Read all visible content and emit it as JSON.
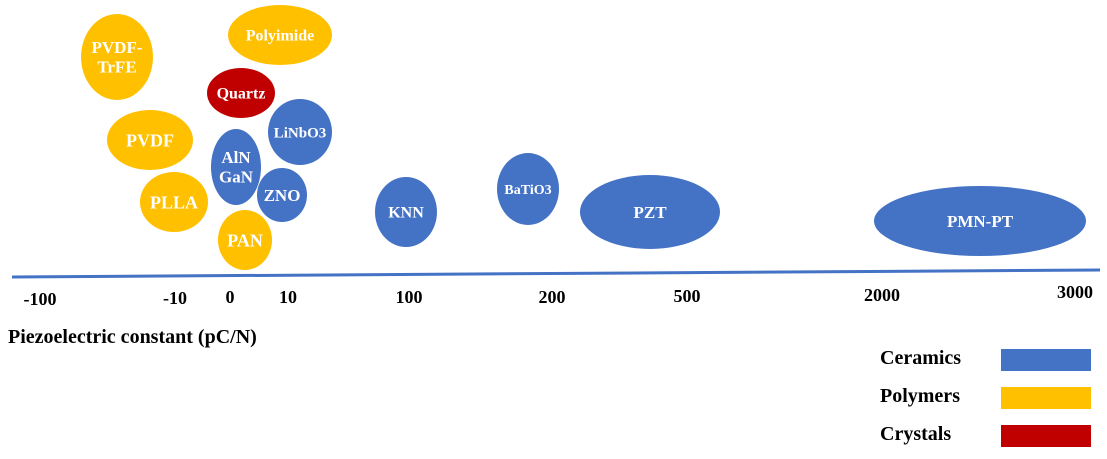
{
  "x_ticks": [
    "-100",
    "-10",
    "0",
    "10",
    "100",
    "200",
    "500",
    "2000",
    "3000"
  ],
  "axis_title": "Piezoelectric constant (pC/N)",
  "legend": [
    {
      "label": "Ceramics",
      "color": "#4472c4"
    },
    {
      "label": "Polymers",
      "color": "#ffc000"
    },
    {
      "label": "Crystals",
      "color": "#c00000"
    }
  ],
  "materials": [
    {
      "name": "PVDF-TrFE",
      "lines": [
        "PVDF-",
        "TrFE"
      ],
      "class": "Polymers"
    },
    {
      "name": "Polyimide",
      "lines": [
        "Polyimide"
      ],
      "class": "Polymers"
    },
    {
      "name": "Quartz",
      "lines": [
        "Quartz"
      ],
      "class": "Crystals"
    },
    {
      "name": "PVDF",
      "lines": [
        "PVDF"
      ],
      "class": "Polymers"
    },
    {
      "name": "LiNbO3",
      "lines": [
        "LiNbO3"
      ],
      "class": "Ceramics"
    },
    {
      "name": "AlN GaN",
      "lines": [
        "AlN",
        "GaN"
      ],
      "class": "Ceramics"
    },
    {
      "name": "PLLA",
      "lines": [
        "PLLA"
      ],
      "class": "Polymers"
    },
    {
      "name": "ZNO",
      "lines": [
        "ZNO"
      ],
      "class": "Ceramics"
    },
    {
      "name": "PAN",
      "lines": [
        "PAN"
      ],
      "class": "Polymers"
    },
    {
      "name": "KNN",
      "lines": [
        "KNN"
      ],
      "class": "Ceramics"
    },
    {
      "name": "BaTiO3",
      "lines": [
        "BaTiO3"
      ],
      "class": "Ceramics"
    },
    {
      "name": "PZT",
      "lines": [
        "PZT"
      ],
      "class": "Ceramics"
    },
    {
      "name": "PMN-PT",
      "lines": [
        "PMN-PT"
      ],
      "class": "Ceramics"
    }
  ]
}
